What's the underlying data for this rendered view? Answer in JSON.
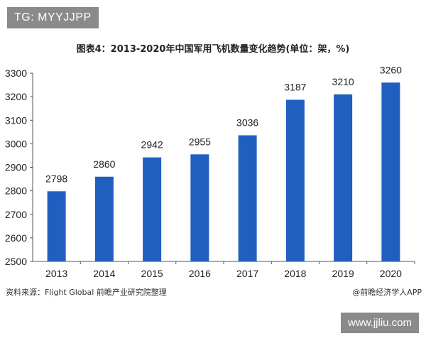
{
  "tag_label": "TG: MYYJJPP",
  "url_label": "www.jjliu.com",
  "colors": {
    "bar": "#1F5FC0",
    "axis": "#555555",
    "text": "#222222"
  },
  "chart_data": {
    "type": "bar",
    "title": "图表4：2013-2020年中国军用飞机数量变化趋势(单位：架，%)",
    "xlabel": "",
    "ylabel": "",
    "categories": [
      "2013",
      "2014",
      "2015",
      "2016",
      "2017",
      "2018",
      "2019",
      "2020"
    ],
    "values": [
      2798,
      2860,
      2942,
      2955,
      3036,
      3187,
      3210,
      3260
    ],
    "ylim": [
      2500,
      3300
    ],
    "yticks": [
      2500,
      2600,
      2700,
      2800,
      2900,
      3000,
      3100,
      3200,
      3300
    ],
    "grid": false,
    "data_labels": true
  },
  "footer": {
    "source": "资料来源：Flight Global 前瞻产业研究院整理",
    "brand": "@前瞻经济学人APP"
  }
}
